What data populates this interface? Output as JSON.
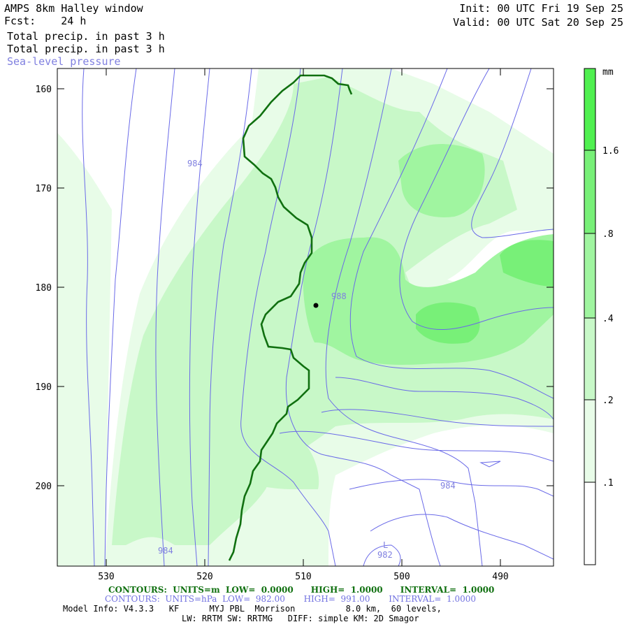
{
  "header": {
    "title": "AMPS 8km Halley window",
    "fcst": "Fcst:    24 h",
    "field1": "Total precip. in past 3 h",
    "field2": "Total precip. in past 3 h",
    "field3": "Sea-level pressure",
    "init": "Init: 00 UTC Fri 19 Sep 25",
    "valid": "Valid: 00 UTC Sat 20 Sep 25"
  },
  "axes": {
    "x_ticks": [
      "530",
      "520",
      "510",
      "500",
      "490"
    ],
    "y_ticks": [
      "160",
      "170",
      "180",
      "190",
      "200"
    ]
  },
  "colorbar": {
    "unit": "mm",
    "labels": [
      "1.6",
      ".8",
      ".4",
      ".2",
      ".1"
    ],
    "colors": [
      "#50f050",
      "#78f078",
      "#a0f5a0",
      "#c8f8c8",
      "#e8fce8",
      "#ffffff"
    ]
  },
  "contour_labels": {
    "p1": "984",
    "p2": "988",
    "p3": "984",
    "p4": "984",
    "low_marker": "L",
    "low_value": "982"
  },
  "footer": {
    "contours1": "CONTOURS:  UNITS=m  LOW=  0.0000      HIGH=  1.0000      INTERVAL=  1.0000",
    "contours2": "CONTOURS:  UNITS=hPa  LOW=  982.00       HIGH=  991.00       INTERVAL=  1.0000",
    "model_info": "Model Info: V4.3.3   KF      MYJ PBL  Morrison          8.0 km,  60 levels,",
    "physics": "LW: RRTM SW: RRTMG   DIFF: simple KM: 2D Smagor"
  }
}
